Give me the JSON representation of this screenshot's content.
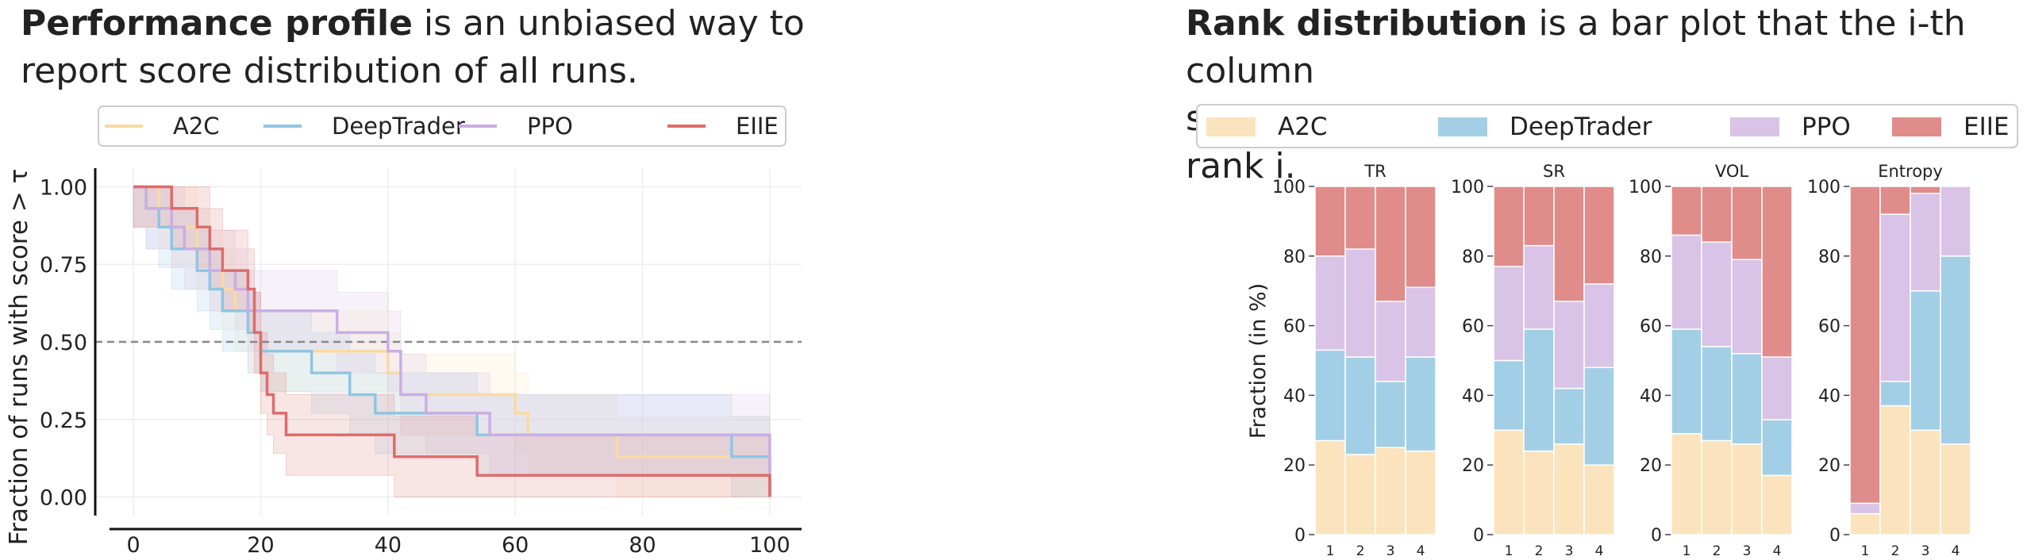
{
  "left_heading": {
    "bold": "Performance profile",
    "line1_rest": " is an unbiased way to",
    "line2": "report score distribution of all runs."
  },
  "right_heading": {
    "bold": "Rank distribution",
    "line1_rest": " is a bar plot that the i-th column",
    "line2": "shows the probability that one method is at rank i."
  },
  "colors": {
    "A2C": "#fbe3bd",
    "DeepTrader": "#a3cfe6",
    "PPO": "#d9c3e6",
    "EIIE": "#e08c8a",
    "A2C_line": "#fad9a2",
    "DeepTrader_line": "#8ec6e3",
    "PPO_line": "#c9aee4",
    "EIIE_line": "#e06b6b"
  },
  "chart_data": [
    {
      "type": "line",
      "title": "",
      "xlabel": "",
      "ylabel": "Fraction of runs with score > τ",
      "xlim": [
        -6,
        105
      ],
      "ylim": [
        -0.06,
        1.06
      ],
      "xticks": [
        0,
        20,
        40,
        60,
        80,
        100
      ],
      "xtick_labels": [
        "0",
        "20",
        "40",
        "60",
        "80",
        "100"
      ],
      "yticks": [
        0.0,
        0.25,
        0.5,
        0.75,
        1.0
      ],
      "ytick_labels": [
        "0.00",
        "0.25",
        "0.50",
        "0.75",
        "1.00"
      ],
      "reference_line": 0.5,
      "legend": [
        "A2C",
        "DeepTrader",
        "PPO",
        "EIIE"
      ],
      "legend_position": "top",
      "series": [
        {
          "name": "A2C",
          "x": [
            0,
            4,
            6,
            10,
            12,
            14,
            16,
            18,
            20,
            22,
            26,
            32,
            40,
            42,
            50,
            60,
            62,
            76,
            94,
            100
          ],
          "y": [
            1.0,
            0.93,
            0.87,
            0.8,
            0.73,
            0.67,
            0.6,
            0.53,
            0.47,
            0.47,
            0.47,
            0.47,
            0.4,
            0.33,
            0.33,
            0.27,
            0.2,
            0.13,
            0.13,
            0.0
          ]
        },
        {
          "name": "DeepTrader",
          "x": [
            0,
            2,
            4,
            6,
            8,
            10,
            12,
            14,
            18,
            20,
            28,
            34,
            38,
            42,
            48,
            54,
            62,
            80,
            94,
            100
          ],
          "y": [
            1.0,
            0.93,
            0.87,
            0.8,
            0.8,
            0.73,
            0.67,
            0.6,
            0.53,
            0.47,
            0.4,
            0.33,
            0.27,
            0.27,
            0.27,
            0.2,
            0.2,
            0.2,
            0.13,
            0.0
          ]
        },
        {
          "name": "PPO",
          "x": [
            0,
            2,
            6,
            8,
            12,
            16,
            18,
            20,
            24,
            32,
            40,
            42,
            46,
            56,
            74,
            80,
            88,
            100
          ],
          "y": [
            1.0,
            0.93,
            0.87,
            0.8,
            0.73,
            0.67,
            0.6,
            0.6,
            0.6,
            0.53,
            0.47,
            0.33,
            0.27,
            0.2,
            0.2,
            0.2,
            0.2,
            0.0
          ]
        },
        {
          "name": "EIIE",
          "x": [
            0,
            6,
            10,
            12,
            14,
            18,
            19,
            20,
            21,
            22,
            24,
            30,
            36,
            41,
            54,
            60,
            78,
            100
          ],
          "y": [
            1.0,
            0.93,
            0.87,
            0.8,
            0.73,
            0.67,
            0.53,
            0.4,
            0.33,
            0.27,
            0.2,
            0.2,
            0.2,
            0.13,
            0.07,
            0.07,
            0.07,
            0.0
          ]
        }
      ]
    },
    {
      "type": "bar",
      "stacked": true,
      "ylabel": "Fraction (in %)",
      "ylim": [
        0,
        100
      ],
      "yticks": [
        0,
        20,
        40,
        60,
        80,
        100
      ],
      "ytick_labels": [
        "0",
        "20",
        "40",
        "60",
        "80",
        "100"
      ],
      "legend": [
        "A2C",
        "DeepTrader",
        "PPO",
        "EIIE"
      ],
      "legend_position": "top",
      "categories": [
        "1",
        "2",
        "3",
        "4"
      ],
      "panels": [
        {
          "title": "TR",
          "series": [
            {
              "name": "A2C",
              "values": [
                27,
                23,
                25,
                24
              ]
            },
            {
              "name": "DeepTrader",
              "values": [
                26,
                28,
                19,
                27
              ]
            },
            {
              "name": "PPO",
              "values": [
                27,
                31,
                23,
                20
              ]
            },
            {
              "name": "EIIE",
              "values": [
                20,
                18,
                33,
                29
              ]
            }
          ]
        },
        {
          "title": "SR",
          "series": [
            {
              "name": "A2C",
              "values": [
                30,
                24,
                26,
                20
              ]
            },
            {
              "name": "DeepTrader",
              "values": [
                20,
                35,
                16,
                28
              ]
            },
            {
              "name": "PPO",
              "values": [
                27,
                24,
                25,
                24
              ]
            },
            {
              "name": "EIIE",
              "values": [
                23,
                17,
                33,
                28
              ]
            }
          ]
        },
        {
          "title": "VOL",
          "series": [
            {
              "name": "A2C",
              "values": [
                29,
                27,
                26,
                17
              ]
            },
            {
              "name": "DeepTrader",
              "values": [
                30,
                27,
                26,
                16
              ]
            },
            {
              "name": "PPO",
              "values": [
                27,
                30,
                27,
                18
              ]
            },
            {
              "name": "EIIE",
              "values": [
                14,
                16,
                21,
                49
              ]
            }
          ]
        },
        {
          "title": "Entropy",
          "series": [
            {
              "name": "A2C",
              "values": [
                6,
                37,
                30,
                26
              ]
            },
            {
              "name": "DeepTrader",
              "values": [
                0,
                7,
                40,
                54
              ]
            },
            {
              "name": "PPO",
              "values": [
                3,
                48,
                28,
                20
              ]
            },
            {
              "name": "EIIE",
              "values": [
                91,
                8,
                2,
                0
              ]
            }
          ]
        }
      ]
    }
  ]
}
